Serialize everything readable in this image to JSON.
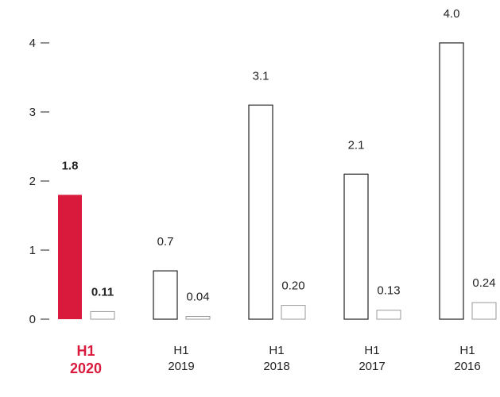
{
  "chart_data": {
    "type": "bar",
    "title": "",
    "xlabel": "",
    "ylabel": "",
    "ylim": [
      0,
      4
    ],
    "yticks": [
      0,
      1,
      2,
      3,
      4
    ],
    "grid": false,
    "categories": [
      {
        "line1": "H1",
        "line2": "2020"
      },
      {
        "line1": "H1",
        "line2": "2019"
      },
      {
        "line1": "H1",
        "line2": "2018"
      },
      {
        "line1": "H1",
        "line2": "2017"
      },
      {
        "line1": "H1",
        "line2": "2016"
      }
    ],
    "series": [
      {
        "values": [
          1.8,
          0.7,
          3.1,
          2.1,
          4.0
        ],
        "labels": [
          "1.8",
          "0.7",
          "3.1",
          "2.1",
          "4.0"
        ]
      },
      {
        "values": [
          0.11,
          0.04,
          0.2,
          0.13,
          0.24
        ],
        "labels": [
          "0.11",
          "0.04",
          "0.20",
          "0.13",
          "0.24"
        ]
      }
    ],
    "highlight_index": 0,
    "colors": {
      "highlight": "#d91a3d",
      "primary_outline": "#222222",
      "secondary_outline": "#999999",
      "text": "#222222"
    }
  }
}
